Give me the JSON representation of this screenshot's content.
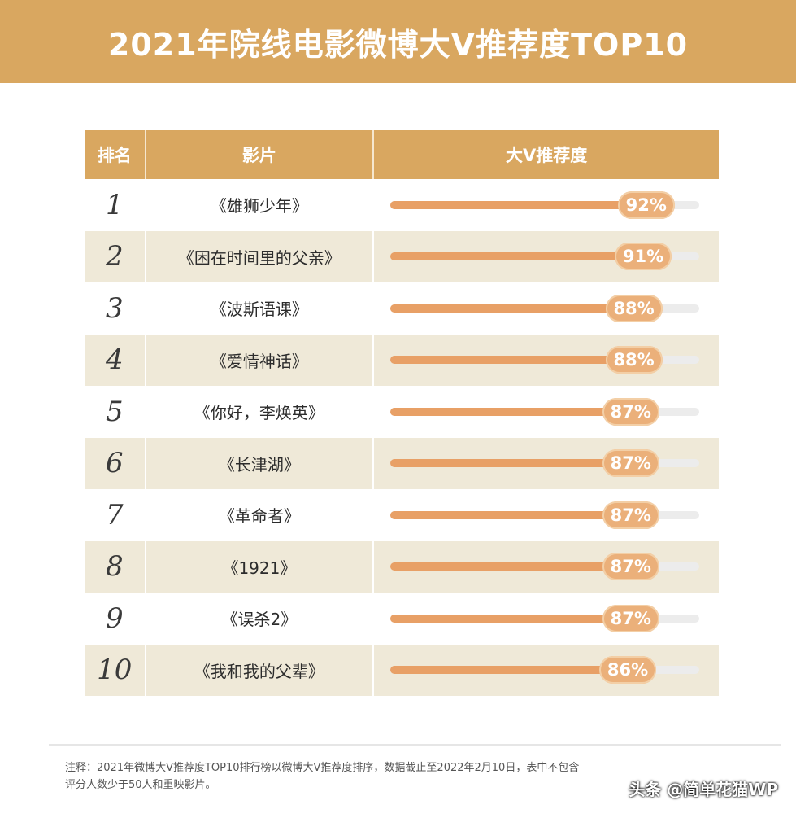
{
  "banner": {
    "title": "2021年院线电影微博大V推荐度TOP10"
  },
  "table": {
    "headers": {
      "rank": "排名",
      "film": "影片",
      "score": "大V推荐度"
    }
  },
  "chart_data": {
    "type": "table",
    "title": "2021年院线电影微博大V推荐度TOP10",
    "columns": [
      "排名",
      "影片",
      "大V推荐度"
    ],
    "rows": [
      {
        "rank": "1",
        "film": "《雄狮少年》",
        "score": 92,
        "label": "92%"
      },
      {
        "rank": "2",
        "film": "《困在时间里的父亲》",
        "score": 91,
        "label": "91%"
      },
      {
        "rank": "3",
        "film": "《波斯语课》",
        "score": 88,
        "label": "88%"
      },
      {
        "rank": "4",
        "film": "《爱情神话》",
        "score": 88,
        "label": "88%"
      },
      {
        "rank": "5",
        "film": "《你好，李焕英》",
        "score": 87,
        "label": "87%"
      },
      {
        "rank": "6",
        "film": "《长津湖》",
        "score": 87,
        "label": "87%"
      },
      {
        "rank": "7",
        "film": "《革命者》",
        "score": 87,
        "label": "87%"
      },
      {
        "rank": "8",
        "film": "《1921》",
        "score": 87,
        "label": "87%"
      },
      {
        "rank": "9",
        "film": "《误杀2》",
        "score": 87,
        "label": "87%"
      },
      {
        "rank": "10",
        "film": "《我和我的父辈》",
        "score": 86,
        "label": "86%"
      }
    ],
    "bar_max": 100
  },
  "footnote": {
    "line1": "注释：2021年微博大V推荐度TOP10排行榜以微博大V推荐度排序，数据截止至2022年2月10日，表中不包含",
    "line2": "评分人数少于50人和重映影片。"
  },
  "watermark": "头条 @简单花猫WP",
  "colors": {
    "accent": "#d9a760",
    "bar": "#e8a066",
    "pill": "#ebb07a",
    "row_shade": "#efe9d8"
  }
}
